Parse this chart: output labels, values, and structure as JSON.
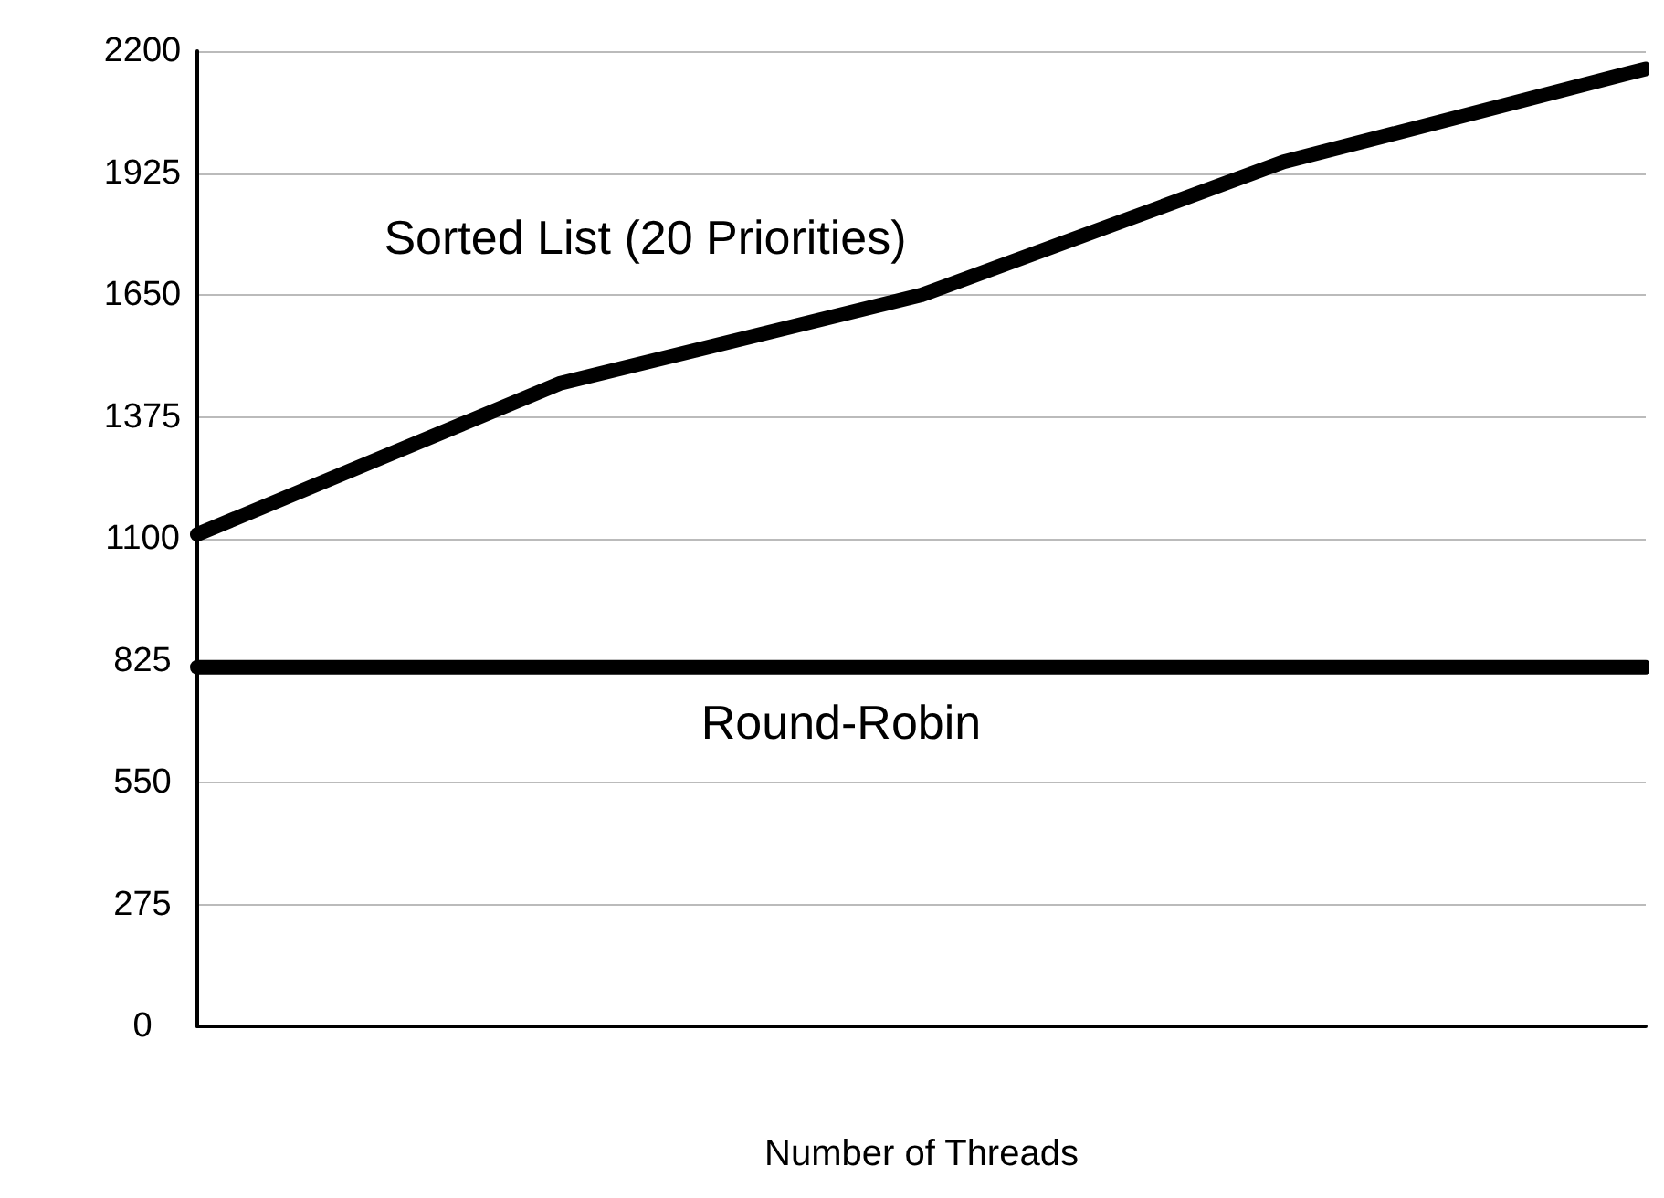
{
  "chart_data": {
    "type": "line",
    "xlabel": "Number of Threads",
    "categories": [
      null,
      null,
      null,
      null,
      null
    ],
    "series": [
      {
        "name": "Sorted List (20 Priorities)",
        "color": "#000000",
        "values": [
          1110,
          1450,
          1650,
          1950,
          2160
        ]
      },
      {
        "name": "Round-Robin",
        "color": "#000000",
        "values": [
          810,
          810,
          810,
          810,
          810
        ]
      }
    ],
    "ylim": [
      0,
      2200
    ],
    "yticks": [
      0,
      275,
      550,
      825,
      1100,
      1375,
      1650,
      1925,
      2200
    ],
    "grid": "y",
    "tick_labels": "y",
    "legend": false,
    "marker": "none",
    "line_style": "solid"
  }
}
